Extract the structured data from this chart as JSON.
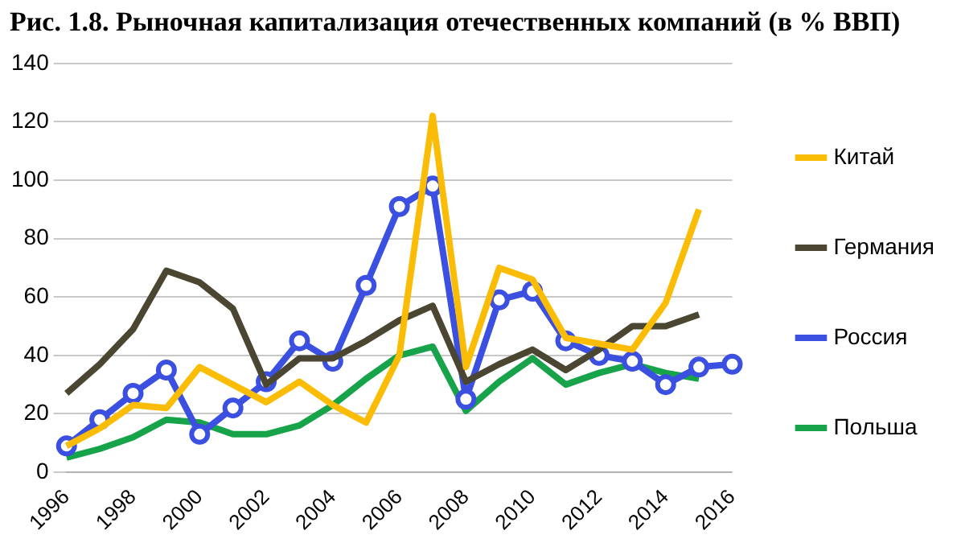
{
  "chart_data": {
    "type": "line",
    "title": "Рис. 1.8. Рыночная капитализация отечественных компаний (в % ВВП)",
    "categories": [
      "1996",
      null,
      "1998",
      null,
      "2000",
      null,
      "2002",
      null,
      "2004",
      null,
      "2006",
      null,
      "2008",
      null,
      "2010",
      null,
      "2012",
      null,
      "2014",
      null,
      "2016"
    ],
    "series": [
      {
        "name": "Китай",
        "color": "#fbbc05",
        "marker": "none",
        "values": [
          9,
          15,
          23,
          22,
          36,
          30,
          24,
          31,
          23,
          17,
          40,
          122,
          36,
          70,
          66,
          46,
          44,
          42,
          58,
          90,
          null
        ]
      },
      {
        "name": "Германия",
        "color": "#4a4632",
        "marker": "none",
        "values": [
          27,
          37,
          49,
          69,
          65,
          56,
          30,
          39,
          39,
          45,
          52,
          57,
          31,
          37,
          42,
          35,
          42,
          50,
          50,
          54,
          null
        ]
      },
      {
        "name": "Россия",
        "color": "#3b4fe0",
        "marker": "circle",
        "values": [
          9,
          18,
          27,
          35,
          13,
          22,
          31,
          45,
          38,
          64,
          91,
          98,
          25,
          59,
          62,
          45,
          40,
          38,
          30,
          36,
          37
        ]
      },
      {
        "name": "Польша",
        "color": "#16a34a",
        "marker": "none",
        "values": [
          5,
          8,
          12,
          18,
          17,
          13,
          13,
          16,
          23,
          32,
          40,
          43,
          21,
          31,
          39,
          30,
          34,
          37,
          34,
          32,
          null
        ]
      }
    ],
    "ylim": [
      0,
      140
    ],
    "yticks": [
      0,
      20,
      40,
      60,
      80,
      100,
      120,
      140
    ],
    "grid": "y",
    "legend": "right"
  }
}
